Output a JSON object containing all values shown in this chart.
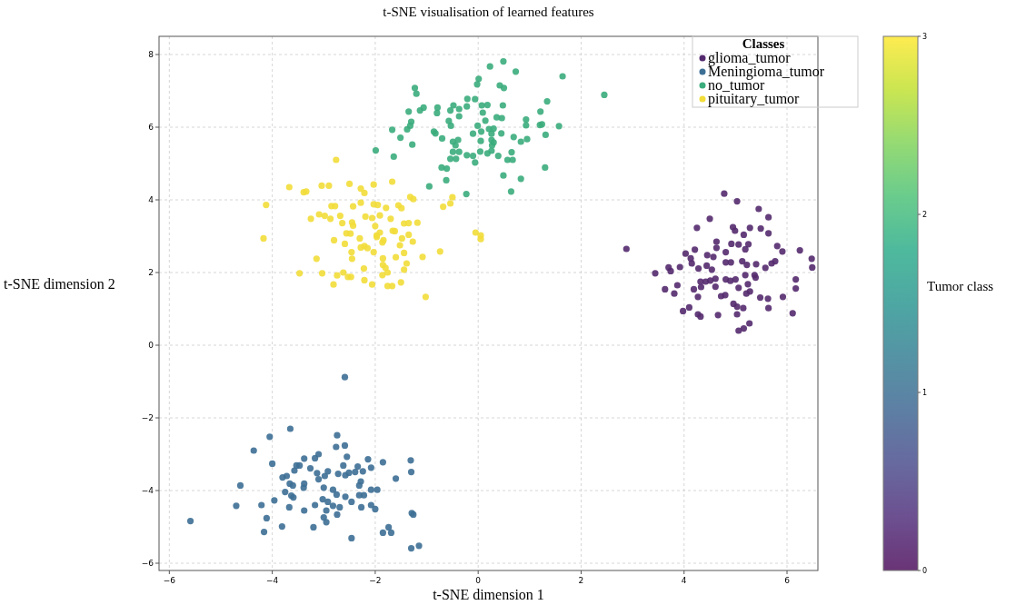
{
  "chart_data": {
    "type": "scatter",
    "title": "t-SNE visualisation of learned features",
    "xlabel": "t-SNE dimension 1",
    "ylabel": "t-SNE dimension 2",
    "legend_title": "Classes",
    "clabel": "Tumor class",
    "xlim": [
      -6.2,
      6.6
    ],
    "ylim": [
      -6.2,
      8.5
    ],
    "xticks": [
      -6,
      -4,
      -2,
      0,
      2,
      4,
      6
    ],
    "yticks": [
      -6,
      -4,
      -2,
      0,
      2,
      4,
      6,
      8
    ],
    "clim": [
      0,
      3
    ],
    "cticks": [
      0,
      1,
      2,
      3
    ],
    "grid": true,
    "legend": "top right",
    "marker": "circle",
    "series": [
      {
        "name": "glioma_tumor",
        "color": "#542a6e",
        "x": [
          4.78,
          5.03,
          5.45,
          5.64,
          4.5,
          4.25,
          4.95,
          4.99,
          5.28,
          5.49,
          5.16,
          5.64,
          2.88,
          4.63,
          4.63,
          4.92,
          5.06,
          5.25,
          5.19,
          5.81,
          5.91,
          6.25,
          6.48,
          6.49,
          4.21,
          4.03,
          4.13,
          4.45,
          4.57,
          4.81,
          4.15,
          4.28,
          4.44,
          4.54,
          4.81,
          4.91,
          5.13,
          5.22,
          5.4,
          5.58,
          5.7,
          5.77,
          3.7,
          3.74,
          3.92,
          3.44,
          4.32,
          4.42,
          4.51,
          4.61,
          4.81,
          4.9,
          5.0,
          5.19,
          5.37,
          5.39,
          6.17,
          3.87,
          3.63,
          3.81,
          4.19,
          4.33,
          4.61,
          5.06,
          5.24,
          5.28,
          5.21,
          6.17,
          4.27,
          4.72,
          4.8,
          5.48,
          5.63,
          5.92,
          4.96,
          5.03,
          5.15,
          5.64,
          4.1,
          3.98,
          4.27,
          4.32,
          4.66,
          5.03,
          6.11,
          5.27,
          5.16,
          5.06
        ],
        "values": [
          4.17,
          3.96,
          3.75,
          3.52,
          3.48,
          3.23,
          3.25,
          3.15,
          3.23,
          3.21,
          3.04,
          3.08,
          2.65,
          2.85,
          2.68,
          2.79,
          2.77,
          2.78,
          2.64,
          2.73,
          2.58,
          2.61,
          2.38,
          2.14,
          2.63,
          2.52,
          2.39,
          2.48,
          2.43,
          2.56,
          2.25,
          2.11,
          2.19,
          2.08,
          2.28,
          2.28,
          2.31,
          2.21,
          2.23,
          2.13,
          2.25,
          2.31,
          2.14,
          2.04,
          2.15,
          1.98,
          1.75,
          1.75,
          1.78,
          1.83,
          1.81,
          1.77,
          1.81,
          1.93,
          1.93,
          1.86,
          1.81,
          1.65,
          1.54,
          1.42,
          1.54,
          1.6,
          1.61,
          1.58,
          1.68,
          1.48,
          1.42,
          1.56,
          1.33,
          1.35,
          1.38,
          1.31,
          1.28,
          1.33,
          1.14,
          1.06,
          1.02,
          1.02,
          1.04,
          0.94,
          0.85,
          0.79,
          0.83,
          0.85,
          0.88,
          0.6,
          0.46,
          0.4
        ]
      },
      {
        "name": "Meningioma_tumor",
        "color": "#3d6f95",
        "x": [
          -2.59,
          -3.65,
          -4.05,
          -2.74,
          -4.36,
          -2.76,
          -2.59,
          -3.1,
          -3.17,
          -3.38,
          -2.55,
          -2.14,
          -1.85,
          -1.31,
          -4.0,
          -3.53,
          -3.47,
          -3.26,
          -2.62,
          -2.34,
          -2.08,
          -3.57,
          -3.13,
          -2.92,
          -2.72,
          -2.51,
          -2.39,
          -2.24,
          -1.3,
          -3.8,
          -3.72,
          -2.98,
          -3.1,
          -2.58,
          -1.6,
          -2.28,
          -2.31,
          -4.62,
          -3.66,
          -3.6,
          -3.38,
          -3.39,
          -3.0,
          -2.82,
          -2.08,
          -1.96,
          -3.75,
          -3.63,
          -3.59,
          -2.75,
          -2.58,
          -2.31,
          -2.22,
          -3.96,
          -3.02,
          -2.92,
          -2.46,
          -4.7,
          -4.21,
          -3.67,
          -3.17,
          -2.82,
          -2.69,
          -2.27,
          -2.08,
          -2.0,
          -3.38,
          -2.95,
          -2.74,
          -3.0,
          -2.95,
          -1.29,
          -1.26,
          -5.59,
          -4.11,
          -3.81,
          -3.2,
          -4.16,
          -2.46,
          -1.74,
          -1.85,
          -1.69,
          -1.3,
          -1.15
        ],
        "values": [
          -0.88,
          -2.3,
          -2.52,
          -2.48,
          -2.9,
          -2.8,
          -2.76,
          -3.0,
          -3.11,
          -3.12,
          -3.07,
          -3.14,
          -3.22,
          -3.17,
          -3.26,
          -3.31,
          -3.31,
          -3.39,
          -3.31,
          -3.34,
          -3.37,
          -3.45,
          -3.52,
          -3.47,
          -3.54,
          -3.51,
          -3.49,
          -3.47,
          -3.49,
          -3.64,
          -3.6,
          -3.6,
          -3.69,
          -3.58,
          -3.67,
          -3.75,
          -3.86,
          -3.86,
          -3.81,
          -3.86,
          -3.81,
          -3.92,
          -3.92,
          -3.98,
          -3.98,
          -3.98,
          -4.04,
          -4.14,
          -4.19,
          -4.11,
          -4.17,
          -4.13,
          -4.13,
          -4.27,
          -4.24,
          -4.31,
          -4.31,
          -4.42,
          -4.4,
          -4.46,
          -4.4,
          -4.42,
          -4.46,
          -4.46,
          -4.4,
          -4.51,
          -4.55,
          -4.55,
          -4.66,
          -4.74,
          -4.87,
          -4.62,
          -4.66,
          -4.84,
          -4.76,
          -4.99,
          -5.01,
          -5.14,
          -5.31,
          -5.01,
          -5.16,
          -5.16,
          -5.59,
          -5.52
        ]
      },
      {
        "name": "no_tumor",
        "color": "#3bac7c",
        "x": [
          0.49,
          0.23,
          0.73,
          1.64,
          2.45,
          0.01,
          -0.02,
          0.42,
          0.5,
          -1.23,
          -1.2,
          -0.21,
          -0.06,
          1.34,
          -1.06,
          -1.13,
          -1.35,
          -0.79,
          -0.8,
          -0.48,
          -0.37,
          -0.22,
          0.07,
          0.18,
          0.48,
          -0.54,
          0.09,
          -0.37,
          0.36,
          0.46,
          1.21,
          0.93,
          0.93,
          1.2,
          1.24,
          1.57,
          -0.57,
          -0.53,
          0.14,
          -0.01,
          -1.3,
          -1.32,
          -1.38,
          -1.67,
          -0.86,
          -0.83,
          -0.1,
          0.06,
          0.21,
          0.3,
          0.26,
          0.45,
          -1.51,
          -0.7,
          -0.49,
          -0.39,
          0.05,
          0.26,
          0.3,
          0.69,
          0.83,
          0.95,
          1.31,
          -1.28,
          -1.99,
          -0.44,
          0.27,
          -0.49,
          -0.37,
          0.04,
          0.18,
          0.26,
          0.39,
          0.65,
          -1.64,
          -0.22,
          -0.1,
          -0.54,
          -0.43,
          -0.06,
          0.57,
          0.67,
          -0.71,
          -0.61,
          1.3,
          0.49,
          0.83,
          -0.62,
          -0.95,
          -0.23,
          0.64
        ],
        "values": [
          7.81,
          7.67,
          7.53,
          7.4,
          6.89,
          7.33,
          7.18,
          7.15,
          7.08,
          7.08,
          6.92,
          6.78,
          6.77,
          6.71,
          6.54,
          6.46,
          6.43,
          6.54,
          6.39,
          6.6,
          6.5,
          6.57,
          6.6,
          6.61,
          6.6,
          6.46,
          6.4,
          6.3,
          6.27,
          6.25,
          6.43,
          6.21,
          6.05,
          6.06,
          6.08,
          6.03,
          6.17,
          6.04,
          6.18,
          6.04,
          6.15,
          6.04,
          5.94,
          5.93,
          5.88,
          5.83,
          5.82,
          5.88,
          5.95,
          5.96,
          5.82,
          5.83,
          5.71,
          5.69,
          5.6,
          5.65,
          5.62,
          5.65,
          5.58,
          5.73,
          5.6,
          5.67,
          5.79,
          5.52,
          5.36,
          5.5,
          5.5,
          5.32,
          5.32,
          5.33,
          5.28,
          5.35,
          5.21,
          5.31,
          5.19,
          5.23,
          5.21,
          5.13,
          5.13,
          5.03,
          5.1,
          5.1,
          4.89,
          4.86,
          4.89,
          4.67,
          4.58,
          4.54,
          4.37,
          4.16,
          4.23
        ]
      },
      {
        "name": "pituitary_tumor",
        "color": "#f2dd3a",
        "x": [
          -2.76,
          -3.67,
          -3.39,
          -3.34,
          -3.04,
          -2.9,
          -2.5,
          -2.28,
          -2.21,
          -2.03,
          -1.67,
          -1.32,
          -1.26,
          -0.5,
          -0.68,
          -0.54,
          -4.12,
          -2.85,
          -2.78,
          -2.43,
          -2.28,
          -2.03,
          -1.95,
          -1.79,
          -1.55,
          -1.49,
          -3.25,
          -3.09,
          -2.98,
          -2.87,
          -2.68,
          -2.19,
          -2.06,
          -1.91,
          -1.7,
          -2.64,
          -2.45,
          -2.43,
          -2.0,
          -1.44,
          -1.35,
          -1.18,
          -2.56,
          -2.48,
          -1.97,
          -1.91,
          -1.66,
          -1.62,
          -1.35,
          -0.05,
          0.05,
          0.05,
          -4.17,
          -2.8,
          -2.3,
          -1.97,
          -1.84,
          -1.86,
          -1.48,
          -1.27,
          -2.59,
          -2.28,
          -2.21,
          -2.15,
          -2.03,
          -1.52,
          -2.46,
          -1.44,
          -0.74,
          -1.08,
          -3.14,
          -2.45,
          -1.85,
          -1.6,
          -1.39,
          -1.85,
          -2.22,
          -1.8,
          -1.44,
          -3.47,
          -3.03,
          -2.74,
          -2.62,
          -2.53,
          -2.47,
          -1.86,
          -1.76,
          -2.21,
          -2.81,
          -2.06,
          -1.76,
          -1.67,
          -1.5,
          -1.02
        ],
        "values": [
          5.1,
          4.35,
          4.21,
          4.23,
          4.39,
          4.39,
          4.44,
          4.31,
          4.19,
          4.42,
          4.5,
          4.08,
          4.02,
          4.07,
          3.81,
          3.9,
          3.86,
          3.83,
          3.83,
          3.82,
          3.92,
          3.88,
          3.86,
          3.78,
          3.85,
          3.77,
          3.48,
          3.6,
          3.56,
          3.48,
          3.56,
          3.54,
          3.5,
          3.57,
          3.48,
          3.36,
          3.38,
          3.29,
          3.28,
          3.35,
          3.36,
          3.37,
          3.08,
          3.07,
          3.02,
          3.1,
          3.15,
          3.14,
          3.04,
          3.1,
          3.02,
          2.92,
          2.94,
          2.89,
          2.94,
          2.98,
          2.89,
          2.83,
          2.94,
          2.85,
          2.79,
          2.69,
          2.73,
          2.67,
          2.56,
          2.75,
          2.56,
          2.54,
          2.58,
          2.43,
          2.38,
          2.38,
          2.39,
          2.42,
          2.25,
          2.21,
          2.11,
          2.13,
          2.08,
          1.98,
          1.98,
          1.92,
          2.0,
          1.88,
          1.88,
          1.93,
          2.0,
          1.79,
          1.67,
          1.67,
          1.63,
          1.63,
          1.73,
          1.33
        ]
      }
    ]
  }
}
